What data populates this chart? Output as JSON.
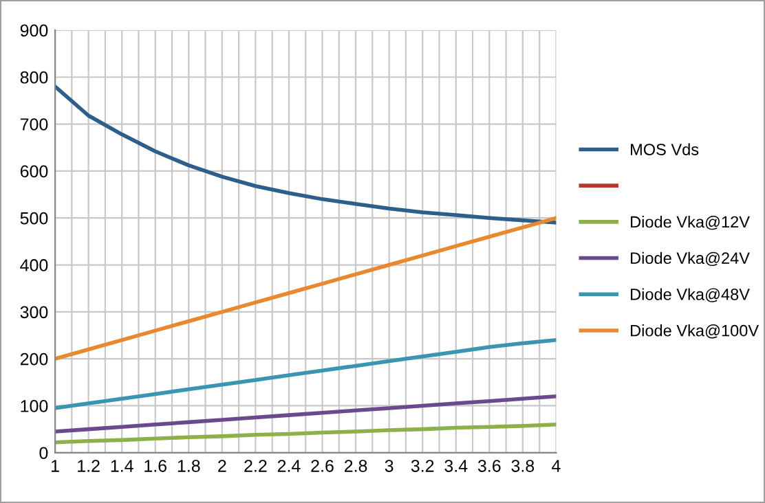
{
  "chart_data": {
    "type": "line",
    "x": [
      1,
      1.2,
      1.4,
      1.6,
      1.8,
      2,
      2.2,
      2.4,
      2.6,
      2.8,
      3,
      3.2,
      3.4,
      3.6,
      3.8,
      4
    ],
    "series": [
      {
        "name": "MOS Vds",
        "color": "#2e5f8a",
        "values": [
          780,
          718,
          678,
          642,
          612,
          588,
          568,
          553,
          540,
          530,
          520,
          512,
          506,
          500,
          495,
          490
        ]
      },
      {
        "color": "#b03a2e",
        "values": [
          null,
          null,
          null,
          null,
          null,
          null,
          null,
          null,
          null,
          null,
          null,
          null,
          null,
          null,
          null,
          null
        ]
      },
      {
        "name": "Diode Vka@12V",
        "color": "#8cb04a",
        "values": [
          22,
          25,
          27,
          30,
          33,
          35,
          38,
          40,
          43,
          45,
          48,
          50,
          53,
          55,
          57,
          60
        ]
      },
      {
        "name": "Diode Vka@24V",
        "color": "#6a4a8c",
        "values": [
          45,
          50,
          55,
          60,
          65,
          70,
          75,
          80,
          85,
          90,
          95,
          100,
          105,
          110,
          115,
          120
        ]
      },
      {
        "name": "Diode Vka@48V",
        "color": "#3a96b0",
        "values": [
          95,
          105,
          115,
          125,
          135,
          145,
          155,
          165,
          175,
          185,
          195,
          205,
          215,
          225,
          233,
          240
        ]
      },
      {
        "name": "Diode Vka@100V",
        "color": "#e8892f",
        "values": [
          200,
          220,
          240,
          260,
          280,
          300,
          320,
          340,
          360,
          380,
          400,
          420,
          440,
          460,
          480,
          500
        ]
      }
    ],
    "xlim": [
      1,
      4
    ],
    "xticks": [
      1,
      {
        "value": 1.1,
        "label": null
      },
      1.2,
      {
        "value": 1.3,
        "label": null
      },
      1.4,
      {
        "value": 1.5,
        "label": null
      },
      1.6,
      {
        "value": 1.7,
        "label": null
      },
      1.8,
      {
        "value": 1.9,
        "label": null
      },
      2,
      {
        "value": 2.1,
        "label": null
      },
      2.2,
      {
        "value": 2.3,
        "label": null
      },
      2.4,
      {
        "value": 2.5,
        "label": null
      },
      2.6,
      {
        "value": 2.7,
        "label": null
      },
      2.8,
      {
        "value": 2.9,
        "label": null
      },
      3,
      {
        "value": 3.1,
        "label": null
      },
      3.2,
      {
        "value": 3.3,
        "label": null
      },
      3.4,
      {
        "value": 3.5,
        "label": null
      },
      3.6,
      {
        "value": 3.7,
        "label": null
      },
      3.8,
      {
        "value": 3.9,
        "label": null
      },
      4
    ],
    "ylim": [
      0,
      900
    ],
    "yticks": [
      0,
      100,
      200,
      300,
      400,
      500,
      600,
      700,
      800,
      900
    ],
    "grid": true,
    "legend": "right",
    "marker": "none",
    "line_style": "solid"
  }
}
